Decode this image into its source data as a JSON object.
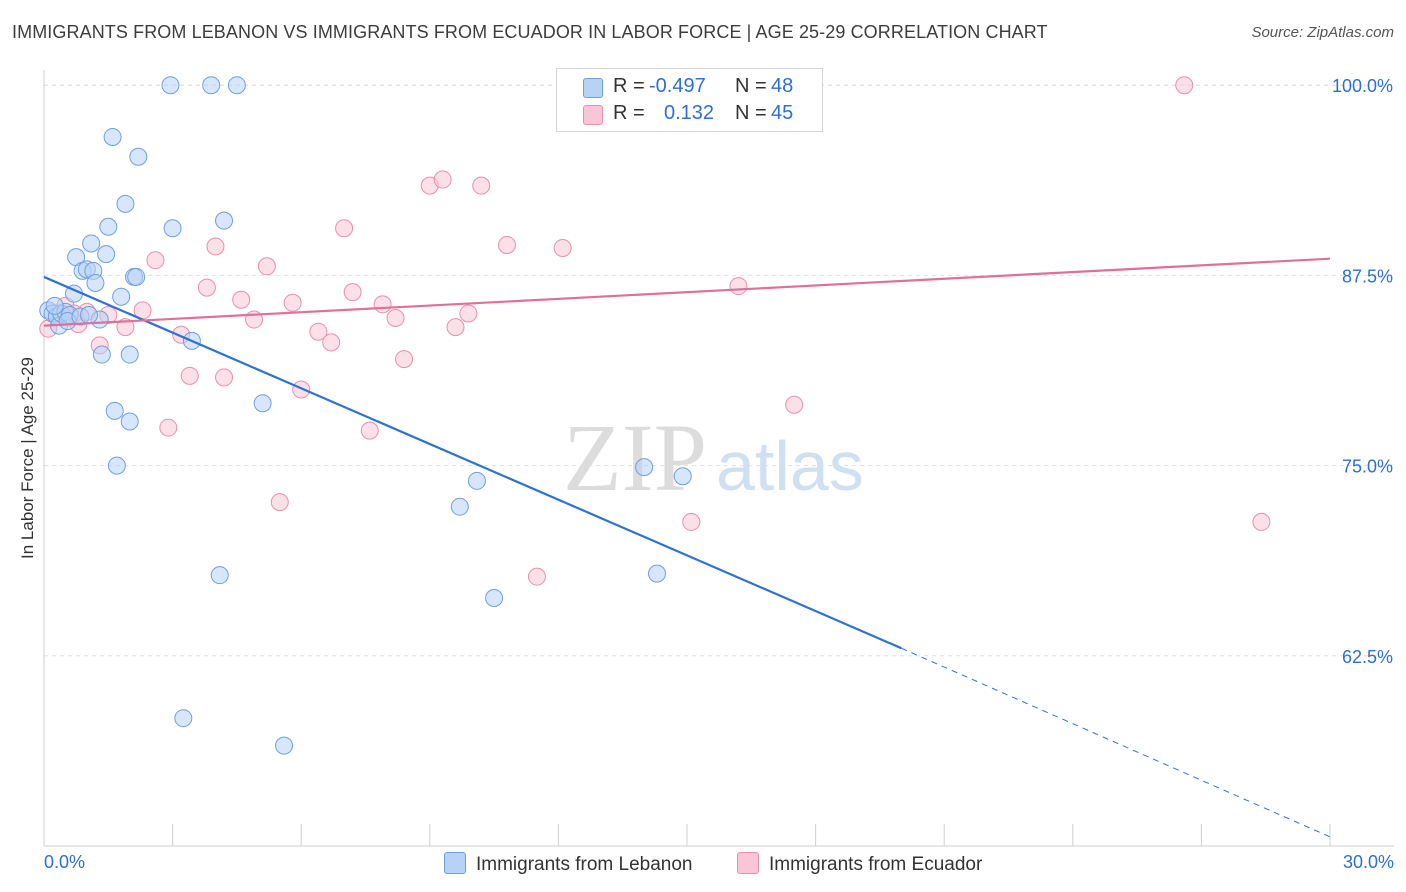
{
  "title": "IMMIGRANTS FROM LEBANON VS IMMIGRANTS FROM ECUADOR IN LABOR FORCE | AGE 25-29 CORRELATION CHART",
  "source": "Source: ZipAtlas.com",
  "watermark": {
    "zip": "ZIP",
    "atlas": "atlas"
  },
  "colors": {
    "lebanon_fill": "#b7d2f5",
    "lebanon_stroke": "#6fa0de",
    "lebanon_line": "#2f72d2",
    "ecuador_fill": "#f8c6d6",
    "ecuador_stroke": "#e88fae",
    "ecuador_line": "#e0709a",
    "axis_text": "#2e6fcf",
    "grid": "#e0e0e0"
  },
  "legend": {
    "rows": [
      {
        "r_label": "R =",
        "r_value": "-0.497",
        "n_label": "N =",
        "n_value": "48"
      },
      {
        "r_label": "R =",
        "r_value": "0.132",
        "n_label": "N =",
        "n_value": "45"
      }
    ]
  },
  "bottom_legend": [
    "Immigrants from Lebanon",
    "Immigrants from Ecuador"
  ],
  "chart_data": {
    "type": "scatter",
    "title": "IMMIGRANTS FROM LEBANON VS IMMIGRANTS FROM ECUADOR IN LABOR FORCE | AGE 25-29 CORRELATION CHART",
    "xlabel": "",
    "ylabel": "In Labor Force | Age 25-29",
    "xlim": [
      0,
      30
    ],
    "ylim": [
      50,
      101
    ],
    "x_tick_labels": [
      "0.0%",
      "30.0%"
    ],
    "y_ticks": [
      62.5,
      75.0,
      87.5,
      100.0
    ],
    "y_tick_labels": [
      "62.5%",
      "75.0%",
      "87.5%",
      "100.0%"
    ],
    "grid": true,
    "legend_position": "top-center",
    "series": [
      {
        "name": "Immigrants from Lebanon",
        "points": [
          [
            0.1,
            85.2
          ],
          [
            0.2,
            85.0
          ],
          [
            0.3,
            84.8
          ],
          [
            0.35,
            84.2
          ],
          [
            0.4,
            85.0
          ],
          [
            0.5,
            85.1
          ],
          [
            0.6,
            84.9
          ],
          [
            0.7,
            86.3
          ],
          [
            0.75,
            88.7
          ],
          [
            0.9,
            87.8
          ],
          [
            1.0,
            87.9
          ],
          [
            1.1,
            89.6
          ],
          [
            1.15,
            87.8
          ],
          [
            1.2,
            87.0
          ],
          [
            1.3,
            84.6
          ],
          [
            1.35,
            82.3
          ],
          [
            1.45,
            88.9
          ],
          [
            1.5,
            90.7
          ],
          [
            1.6,
            96.6
          ],
          [
            1.65,
            78.6
          ],
          [
            1.7,
            75.0
          ],
          [
            1.8,
            86.1
          ],
          [
            1.9,
            92.2
          ],
          [
            2.0,
            77.9
          ],
          [
            2.0,
            82.3
          ],
          [
            2.1,
            87.4
          ],
          [
            2.15,
            87.4
          ],
          [
            2.2,
            95.3
          ],
          [
            2.95,
            100.0
          ],
          [
            3.0,
            90.6
          ],
          [
            3.25,
            58.4
          ],
          [
            3.45,
            83.2
          ],
          [
            3.9,
            100.0
          ],
          [
            4.1,
            67.8
          ],
          [
            4.2,
            91.1
          ],
          [
            4.5,
            100.0
          ],
          [
            5.1,
            79.1
          ],
          [
            5.6,
            56.6
          ],
          [
            9.7,
            72.3
          ],
          [
            10.1,
            74.0
          ],
          [
            10.5,
            66.3
          ],
          [
            14.0,
            74.9
          ],
          [
            14.3,
            67.9
          ],
          [
            14.9,
            74.3
          ],
          [
            0.25,
            85.5
          ],
          [
            0.55,
            84.5
          ],
          [
            0.85,
            84.8
          ],
          [
            1.05,
            84.9
          ]
        ],
        "trend": {
          "x0": 0,
          "y0": 87.4,
          "x1": 20,
          "y1": 63.0,
          "dashed_to": [
            30,
            50.6
          ]
        }
      },
      {
        "name": "Immigrants from Ecuador",
        "points": [
          [
            0.1,
            84.0
          ],
          [
            0.3,
            85.0
          ],
          [
            0.5,
            85.5
          ],
          [
            0.8,
            84.3
          ],
          [
            1.0,
            85.1
          ],
          [
            1.3,
            82.9
          ],
          [
            1.5,
            84.9
          ],
          [
            1.9,
            84.1
          ],
          [
            2.3,
            85.2
          ],
          [
            2.6,
            88.5
          ],
          [
            2.9,
            77.5
          ],
          [
            3.2,
            83.6
          ],
          [
            3.4,
            80.9
          ],
          [
            3.8,
            86.7
          ],
          [
            4.0,
            89.4
          ],
          [
            4.2,
            80.8
          ],
          [
            4.6,
            85.9
          ],
          [
            4.9,
            84.6
          ],
          [
            5.2,
            88.1
          ],
          [
            5.5,
            72.6
          ],
          [
            5.8,
            85.7
          ],
          [
            6.0,
            80.0
          ],
          [
            6.4,
            83.8
          ],
          [
            6.7,
            83.1
          ],
          [
            7.0,
            90.6
          ],
          [
            7.2,
            86.4
          ],
          [
            7.6,
            77.3
          ],
          [
            7.9,
            85.6
          ],
          [
            8.2,
            84.7
          ],
          [
            8.4,
            82.0
          ],
          [
            9.0,
            93.4
          ],
          [
            9.3,
            93.8
          ],
          [
            9.6,
            84.1
          ],
          [
            9.9,
            85.0
          ],
          [
            10.2,
            93.4
          ],
          [
            10.8,
            89.5
          ],
          [
            11.5,
            67.7
          ],
          [
            12.1,
            89.3
          ],
          [
            15.1,
            71.3
          ],
          [
            16.2,
            86.8
          ],
          [
            16.3,
            100.0
          ],
          [
            17.5,
            79.0
          ],
          [
            26.6,
            100.0
          ],
          [
            28.4,
            71.3
          ],
          [
            0.7,
            85.0
          ]
        ],
        "trend": {
          "x0": 0,
          "y0": 84.2,
          "x1": 30,
          "y1": 88.6
        }
      }
    ]
  }
}
